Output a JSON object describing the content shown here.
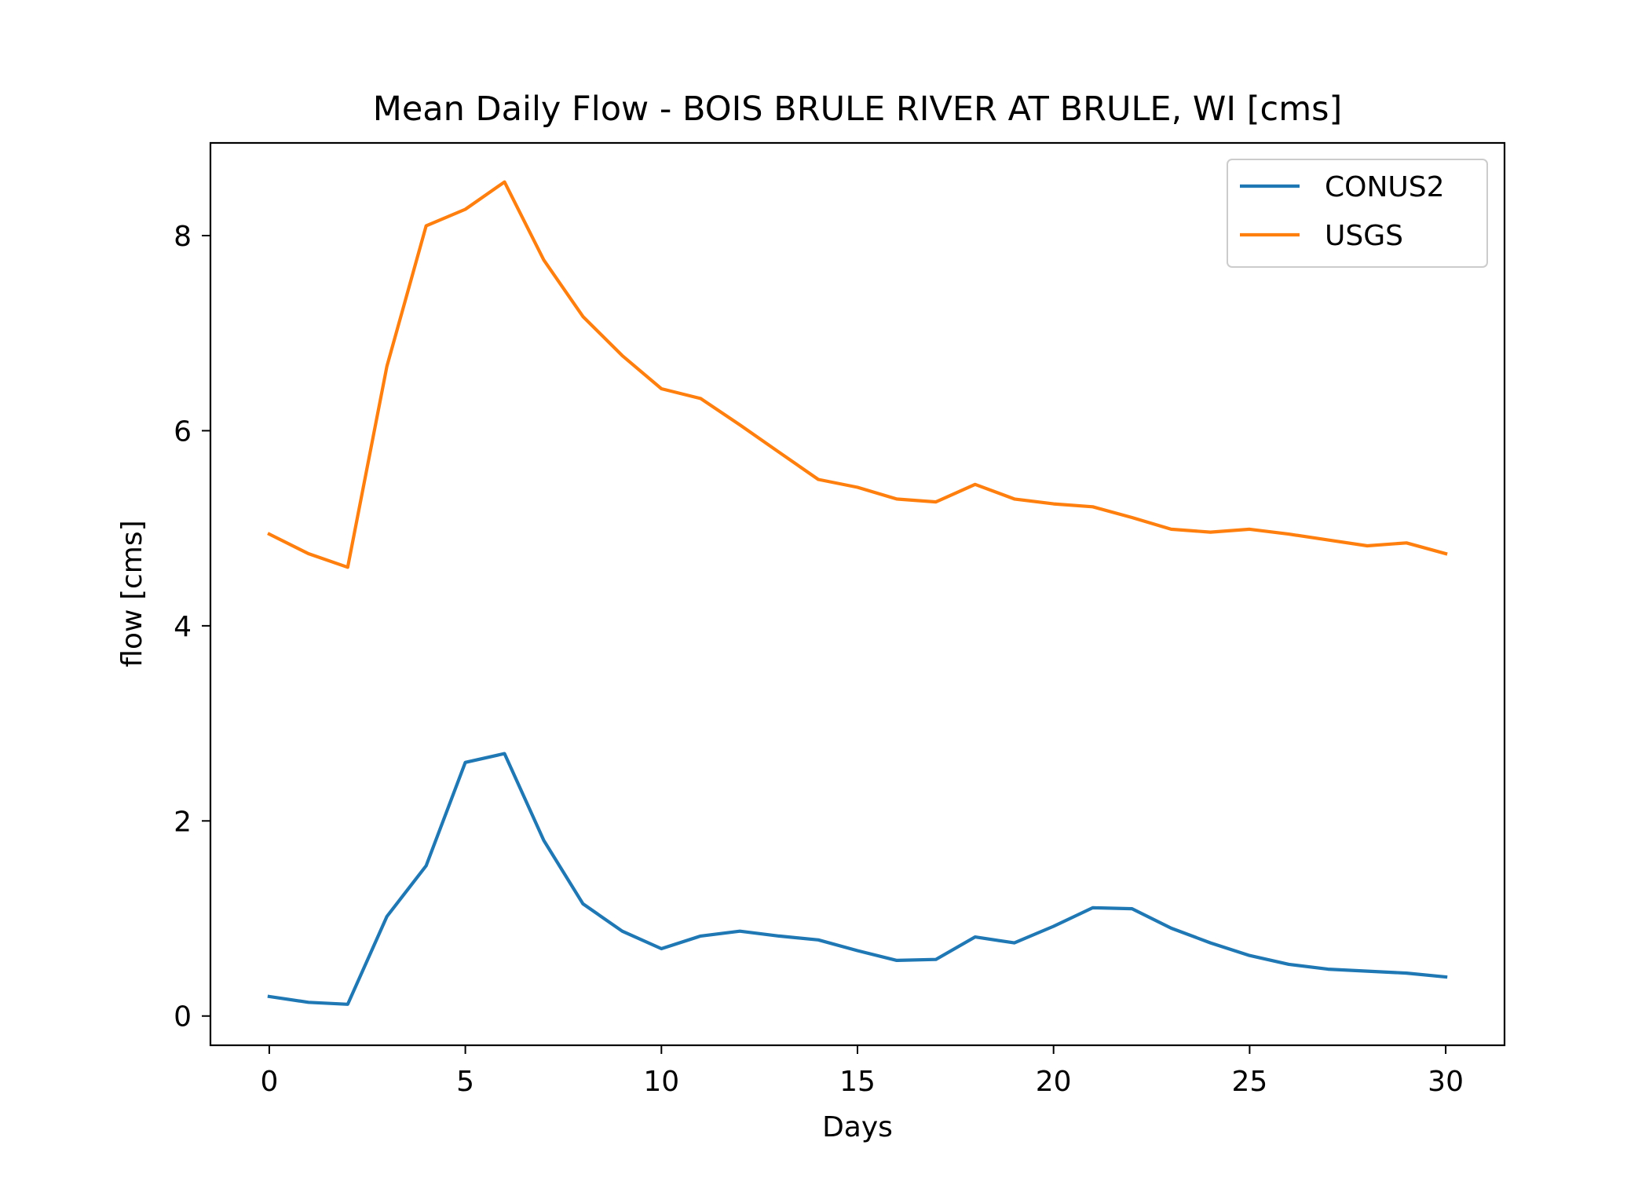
{
  "chart_data": {
    "type": "line",
    "title": "Mean Daily Flow - BOIS BRULE RIVER AT BRULE, WI [cms]",
    "xlabel": "Days",
    "ylabel": "flow [cms]",
    "xlim": [
      -1.5,
      31.5
    ],
    "ylim": [
      -0.3,
      8.95
    ],
    "x_ticks": [
      0,
      5,
      10,
      15,
      20,
      25,
      30
    ],
    "y_ticks": [
      0,
      2,
      4,
      6,
      8
    ],
    "grid": false,
    "legend": "top-right",
    "x": [
      0,
      1,
      2,
      3,
      4,
      5,
      6,
      7,
      8,
      9,
      10,
      11,
      12,
      13,
      14,
      15,
      16,
      17,
      18,
      19,
      20,
      21,
      22,
      23,
      24,
      25,
      26,
      27,
      28,
      29,
      30
    ],
    "series": [
      {
        "name": "CONUS2",
        "color": "#1f77b4",
        "values": [
          0.2,
          0.14,
          0.12,
          1.02,
          1.54,
          2.6,
          2.69,
          1.8,
          1.15,
          0.87,
          0.69,
          0.82,
          0.87,
          0.82,
          0.78,
          0.67,
          0.57,
          0.58,
          0.81,
          0.75,
          0.92,
          1.11,
          1.1,
          0.9,
          0.75,
          0.62,
          0.53,
          0.48,
          0.46,
          0.44,
          0.4
        ]
      },
      {
        "name": "USGS",
        "color": "#ff7f0e",
        "values": [
          4.94,
          4.74,
          4.6,
          6.66,
          8.1,
          8.27,
          8.55,
          7.75,
          7.17,
          6.77,
          6.43,
          6.33,
          6.06,
          5.78,
          5.5,
          5.42,
          5.3,
          5.27,
          5.45,
          5.3,
          5.25,
          5.22,
          5.11,
          4.99,
          4.96,
          4.99,
          4.94,
          4.88,
          4.82,
          4.85,
          4.74
        ]
      }
    ]
  }
}
